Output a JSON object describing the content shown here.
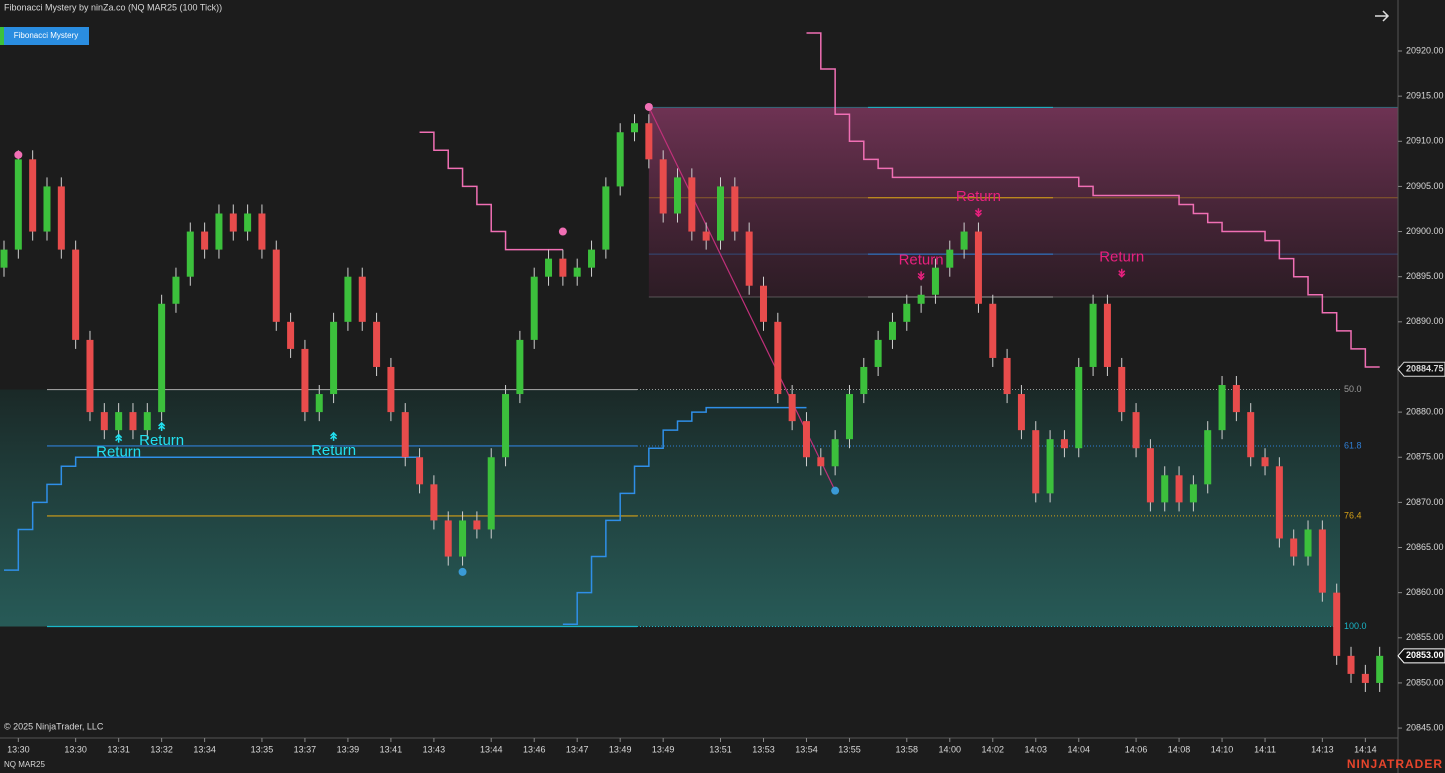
{
  "chart_data": {
    "type": "candlestick",
    "title": "Fibonacci Mystery by ninZa.co (NQ MAR25 (100 Tick))",
    "indicator_button": "Fibonacci Mystery",
    "copyright": "© 2025 NinjaTrader, LLC",
    "instrument": "NQ MAR25",
    "brand": "NINJATRADER",
    "up_color": "#3cc03c",
    "down_color": "#e84c4c",
    "ylim": [
      20843.9,
      20925.65
    ],
    "yticks": [
      {
        "value": 20845,
        "label": "20845.00"
      },
      {
        "value": 20850,
        "label": "20850.00"
      },
      {
        "value": 20855,
        "label": "20855.00"
      },
      {
        "value": 20860,
        "label": "20860.00"
      },
      {
        "value": 20865,
        "label": "20865.00"
      },
      {
        "value": 20870,
        "label": "20870.00"
      },
      {
        "value": 20875,
        "label": "20875.00"
      },
      {
        "value": 20880,
        "label": "20880.00"
      },
      {
        "value": 20885,
        "label": "20885.00"
      },
      {
        "value": 20890,
        "label": "20890.00"
      },
      {
        "value": 20895,
        "label": "20895.00"
      },
      {
        "value": 20900,
        "label": "20900.00"
      },
      {
        "value": 20905,
        "label": "20905.00"
      },
      {
        "value": 20910,
        "label": "20910.00"
      },
      {
        "value": 20915,
        "label": "20915.00"
      },
      {
        "value": 20920,
        "label": "20920.00"
      }
    ],
    "price_labels": [
      {
        "value": 20884.75,
        "label": "20884.75",
        "color": "#d8d8d8"
      },
      {
        "value": 20853,
        "label": "20853.00",
        "color": "#ffffff"
      }
    ],
    "categories": [
      null,
      "13:30",
      null,
      null,
      null,
      "13:30",
      null,
      null,
      "13:31",
      null,
      null,
      "13:32",
      null,
      null,
      "13:34",
      null,
      null,
      null,
      "13:35",
      null,
      null,
      "13:37",
      null,
      null,
      "13:39",
      null,
      null,
      "13:41",
      null,
      null,
      "13:43",
      null,
      null,
      null,
      "13:44",
      null,
      null,
      "13:46",
      null,
      null,
      "13:47",
      null,
      null,
      "13:49",
      null,
      null,
      "13:49",
      null,
      null,
      null,
      "13:51",
      null,
      null,
      "13:53",
      null,
      null,
      "13:54",
      null,
      null,
      "13:55",
      null,
      null,
      null,
      "13:58",
      null,
      null,
      "14:00",
      null,
      null,
      "14:02",
      null,
      null,
      "14:03",
      null,
      null,
      "14:04",
      null,
      null,
      null,
      "14:06",
      null,
      null,
      "14:08",
      null,
      null,
      "14:10",
      null,
      null,
      "14:11",
      null,
      null,
      null,
      "14:13",
      null,
      null,
      "14:14",
      null
    ],
    "open": [
      20896,
      20898,
      20908,
      20900,
      20905,
      20898,
      20888,
      20880,
      20878,
      20880,
      20878,
      20880,
      20892,
      20895,
      20900,
      20898,
      20902,
      20900,
      20902,
      20898,
      20890,
      20887,
      20880,
      20882,
      20890,
      20895,
      20890,
      20885,
      20880,
      20875,
      20872,
      20868,
      20864,
      20868,
      20867,
      20875,
      20882,
      20888,
      20895,
      20897,
      20895,
      20896,
      20898,
      20905,
      20911,
      20912,
      20908,
      20902,
      20906,
      20900,
      20899,
      20905,
      20900,
      20894,
      20890,
      20882,
      20879,
      20875,
      20874,
      20877,
      20882,
      20885,
      20888,
      20890,
      20892,
      20893,
      20896,
      20898,
      20900,
      20892,
      20886,
      20882,
      20878,
      20871,
      20877,
      20876,
      20885,
      20892,
      20885,
      20880,
      20876,
      20870,
      20873,
      20870,
      20872,
      20878,
      20883,
      20880,
      20875,
      20874,
      20866,
      20864,
      20867,
      20860,
      20853,
      20851,
      20850
    ],
    "high": [
      20899,
      20909,
      20909,
      20906,
      20906,
      20899,
      20889,
      20881,
      20881,
      20881,
      20881,
      20893,
      20896,
      20901,
      20901,
      20903,
      20903,
      20903,
      20903,
      20899,
      20891,
      20888,
      20883,
      20891,
      20896,
      20896,
      20891,
      20886,
      20881,
      20876,
      20873,
      20869,
      20869,
      20869,
      20876,
      20883,
      20889,
      20896,
      20898,
      20898,
      20897,
      20899,
      20906,
      20912,
      20913,
      20913,
      20909,
      20907,
      20907,
      20901,
      20906,
      20906,
      20901,
      20895,
      20891,
      20883,
      20880,
      20876,
      20878,
      20883,
      20886,
      20889,
      20891,
      20893,
      20894,
      20897,
      20899,
      20901,
      20901,
      20893,
      20887,
      20883,
      20879,
      20878,
      20878,
      20886,
      20893,
      20893,
      20886,
      20881,
      20877,
      20874,
      20874,
      20873,
      20879,
      20884,
      20884,
      20881,
      20876,
      20875,
      20867,
      20868,
      20868,
      20861,
      20854,
      20852,
      20854
    ],
    "low": [
      20895,
      20897,
      20899,
      20899,
      20897,
      20887,
      20879,
      20877,
      20877,
      20877,
      20877,
      20879,
      20891,
      20894,
      20897,
      20897,
      20899,
      20899,
      20897,
      20889,
      20886,
      20879,
      20879,
      20881,
      20889,
      20889,
      20884,
      20879,
      20874,
      20871,
      20867,
      20863,
      20863,
      20866,
      20866,
      20874,
      20881,
      20887,
      20894,
      20894,
      20894,
      20895,
      20897,
      20904,
      20910,
      20907,
      20901,
      20901,
      20899,
      20898,
      20898,
      20899,
      20893,
      20889,
      20881,
      20878,
      20874,
      20873,
      20873,
      20876,
      20881,
      20884,
      20887,
      20889,
      20891,
      20892,
      20895,
      20897,
      20891,
      20885,
      20881,
      20877,
      20870,
      20870,
      20875,
      20875,
      20884,
      20884,
      20879,
      20875,
      20869,
      20869,
      20869,
      20869,
      20871,
      20877,
      20879,
      20874,
      20873,
      20865,
      20863,
      20863,
      20859,
      20852,
      20850,
      20849,
      20849
    ],
    "close": [
      20898,
      20908,
      20900,
      20905,
      20898,
      20888,
      20880,
      20878,
      20880,
      20878,
      20880,
      20892,
      20895,
      20900,
      20898,
      20902,
      20900,
      20902,
      20898,
      20890,
      20887,
      20880,
      20882,
      20890,
      20895,
      20890,
      20885,
      20880,
      20875,
      20872,
      20868,
      20864,
      20868,
      20867,
      20875,
      20882,
      20888,
      20895,
      20897,
      20895,
      20896,
      20898,
      20905,
      20911,
      20912,
      20908,
      20902,
      20906,
      20900,
      20899,
      20905,
      20900,
      20894,
      20890,
      20882,
      20879,
      20875,
      20874,
      20877,
      20882,
      20885,
      20888,
      20890,
      20892,
      20893,
      20896,
      20898,
      20900,
      20892,
      20886,
      20882,
      20878,
      20871,
      20877,
      20876,
      20885,
      20892,
      20885,
      20880,
      20876,
      20870,
      20873,
      20870,
      20872,
      20878,
      20883,
      20880,
      20875,
      20874,
      20866,
      20864,
      20867,
      20860,
      20853,
      20851,
      20850,
      20853
    ],
    "series": [
      {
        "color": "#f06fb4",
        "values": [
          null,
          null,
          null,
          null,
          null,
          null,
          null,
          null,
          null,
          null,
          null,
          null,
          null,
          null,
          null,
          null,
          null,
          null,
          null,
          null,
          null,
          null,
          null,
          null,
          null,
          null,
          null,
          null,
          null,
          20911,
          20909,
          20907,
          20905,
          20903,
          20900,
          20898,
          20898,
          20898,
          20898,
          20898,
          null,
          null,
          null,
          null,
          null,
          null,
          null,
          null,
          null,
          null,
          null,
          null,
          null,
          null,
          null,
          null,
          20922,
          20918,
          20913,
          20910,
          20908,
          20907,
          20906,
          20906,
          20906,
          20906,
          20906,
          20906,
          20906,
          20906,
          20906,
          20906,
          20906,
          20906,
          20906,
          20905,
          20904,
          20904,
          20904,
          20904,
          20904,
          20904,
          20903,
          20902,
          20901,
          20900,
          20900,
          20900,
          20899,
          20897,
          20895,
          20893,
          20891,
          20889,
          20887,
          20885,
          20885
        ]
      },
      {
        "color": "#2f8fe8",
        "values": [
          20862.5,
          20867,
          20870,
          20872,
          20874,
          20875,
          20875,
          20875,
          20875,
          20875,
          20875,
          20875,
          20875,
          20875,
          20875,
          20875,
          20875,
          20875,
          20875,
          20875,
          20875,
          20875,
          20875,
          20875,
          20875,
          20875,
          20875,
          20875,
          20875,
          20875,
          null,
          null,
          null,
          null,
          null,
          null,
          null,
          null,
          null,
          20856.5,
          20860,
          20864,
          20868,
          20871,
          20874,
          20876,
          20878,
          20879,
          20880,
          20880.5,
          20880.5,
          20880.5,
          20880.5,
          20880.5,
          20880.5,
          20880.5,
          20880.5,
          null,
          null,
          null,
          null,
          null,
          null,
          null,
          null,
          null,
          null,
          null,
          null,
          null,
          null,
          null,
          null,
          null,
          null,
          null,
          null,
          null,
          null,
          null,
          null,
          null,
          null,
          null,
          null,
          null,
          null,
          null,
          null,
          null,
          null,
          null,
          null,
          null,
          null,
          null,
          null
        ]
      }
    ],
    "fib_levels": [
      {
        "label": "50.0",
        "value": 20882.5,
        "color": "#9a9a9a"
      },
      {
        "label": "61.8",
        "value": 20876.25,
        "color": "#2f7fd6"
      },
      {
        "label": "76.4",
        "value": 20868.5,
        "color": "#d4a017"
      },
      {
        "label": "100.0",
        "value": 20856.25,
        "color": "#19b6c8"
      }
    ],
    "upper_levels": [
      {
        "value": 20913.75,
        "color": "#19b6c8"
      },
      {
        "value": 20903.75,
        "color": "#d4a017"
      },
      {
        "value": 20897.5,
        "color": "#2f7fd6"
      },
      {
        "value": 20892.75,
        "color": "#9a9a9a"
      }
    ],
    "pivots": [
      {
        "index": 1,
        "value": 20908.5,
        "color": "#f06fb4"
      },
      {
        "index": 39,
        "value": 20900,
        "color": "#f06fb4"
      },
      {
        "index": 45,
        "value": 20913.8,
        "color": "#f06fb4"
      },
      {
        "index": 32,
        "value": 20862.3,
        "color": "#3a9ad6"
      },
      {
        "index": 58,
        "value": 20871.3,
        "color": "#3a9ad6"
      }
    ],
    "annotations": [
      {
        "text": "Return",
        "index": 8,
        "value": 20877.5,
        "color": "#22e0f0",
        "arrow": "up"
      },
      {
        "text": "Return",
        "index": 11,
        "value": 20878.8,
        "color": "#22e0f0",
        "arrow": "up"
      },
      {
        "text": "Return",
        "index": 23,
        "value": 20877.7,
        "color": "#22e0f0",
        "arrow": "up"
      },
      {
        "text": "Return",
        "index": 64,
        "value": 20894.7,
        "color": "#e8207e",
        "arrow": "down"
      },
      {
        "text": "Return",
        "index": 68,
        "value": 20901.7,
        "color": "#e8207e",
        "arrow": "down"
      },
      {
        "text": "Return",
        "index": 78,
        "value": 20895,
        "color": "#e8207e",
        "arrow": "down"
      }
    ]
  }
}
